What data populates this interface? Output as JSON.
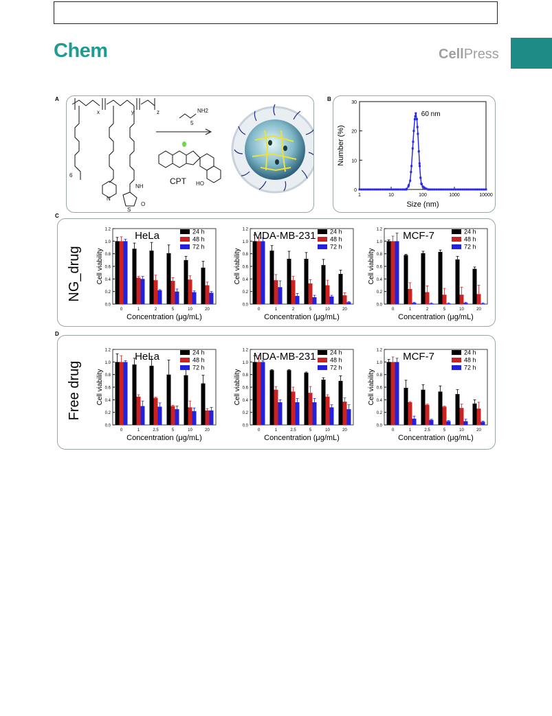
{
  "header": {
    "journal": "Chem",
    "publisher_part1": "Cell",
    "publisher_part2": "Press",
    "accent_color": "#1f9c91",
    "tab_color": "#1f8b86"
  },
  "figure": {
    "panel_labels": [
      "A",
      "B",
      "C",
      "D"
    ],
    "panel_a": {
      "reagent": "NH2",
      "reagent_subscript": "5",
      "subscripts": [
        "x",
        "y",
        "z"
      ],
      "oligo_count": "6",
      "drug_label": "CPT",
      "hydroxyl_label": "HO",
      "amide_label": "NH",
      "sulfur_label": "S",
      "ring_atom_n": "N",
      "ring_atom_o": "O"
    },
    "row_labels": {
      "c": "NG_drug",
      "d": "Free drug"
    }
  },
  "chart_data": [
    {
      "id": "B",
      "type": "line",
      "xscale": "log",
      "xlabel": "Size (nm)",
      "ylabel": "Number (%)",
      "xlim": [
        1,
        10000
      ],
      "ylim": [
        0,
        30
      ],
      "x_tick_labels": [
        "1",
        "10",
        "100",
        "1000",
        "10000"
      ],
      "y_tick_labels": [
        "0",
        "10",
        "20",
        "30"
      ],
      "annotation": "60 nm",
      "color": "#2a2ae6",
      "x": [
        1,
        30,
        35,
        40,
        44,
        48,
        52,
        56,
        60,
        65,
        70,
        75,
        80,
        85,
        90,
        100,
        115,
        130,
        150,
        10000
      ],
      "y": [
        0,
        0,
        1,
        3,
        8,
        14,
        20,
        24,
        26,
        24,
        19,
        13,
        8,
        4,
        2,
        1,
        0.5,
        0.2,
        0,
        0
      ]
    },
    {
      "id": "C-HeLa",
      "type": "bar",
      "title": "HeLa",
      "categories": [
        "0",
        "1",
        "2",
        "5",
        "10",
        "20"
      ],
      "xlabel": "Concentration (μg/mL)",
      "ylabel": "Cell viability",
      "ylim": [
        0,
        1.2
      ],
      "y_tick_labels": [
        "0.0",
        "0.2",
        "0.4",
        "0.6",
        "0.8",
        "1.0",
        "1.2"
      ],
      "series": [
        {
          "name": "24 h",
          "color": "#000000",
          "values": [
            1.0,
            0.88,
            0.85,
            0.81,
            0.7,
            0.58
          ],
          "errors": [
            0.06,
            0.09,
            0.13,
            0.13,
            0.06,
            0.1
          ]
        },
        {
          "name": "48 h",
          "color": "#cc2222",
          "values": [
            1.0,
            0.42,
            0.38,
            0.37,
            0.39,
            0.3
          ],
          "errors": [
            0.07,
            0.02,
            0.08,
            0.05,
            0.06,
            0.05
          ]
        },
        {
          "name": "72 h",
          "color": "#2222dd",
          "values": [
            1.0,
            0.4,
            0.22,
            0.2,
            0.19,
            0.18
          ],
          "errors": [
            0.03,
            0.04,
            0.01,
            0.04,
            0.02,
            0.02
          ]
        }
      ]
    },
    {
      "id": "C-MDA-MB-231",
      "type": "bar",
      "title": "MDA-MB-231",
      "categories": [
        "0",
        "1",
        "2",
        "5",
        "10",
        "20"
      ],
      "xlabel": "Concentration (μg/mL)",
      "ylabel": "Cell viability",
      "ylim": [
        0,
        1.2
      ],
      "y_tick_labels": [
        "0.0",
        "0.2",
        "0.4",
        "0.6",
        "0.8",
        "1.0",
        "1.2"
      ],
      "series": [
        {
          "name": "24 h",
          "color": "#000000",
          "values": [
            1.0,
            0.85,
            0.72,
            0.72,
            0.62,
            0.48
          ],
          "errors": [
            0.1,
            0.08,
            0.12,
            0.1,
            0.09,
            0.06
          ]
        },
        {
          "name": "48 h",
          "color": "#cc2222",
          "values": [
            1.0,
            0.38,
            0.38,
            0.33,
            0.3,
            0.14
          ],
          "errors": [
            0.05,
            0.09,
            0.06,
            0.06,
            0.08,
            0.04
          ]
        },
        {
          "name": "72 h",
          "color": "#2222dd",
          "values": [
            1.0,
            0.27,
            0.13,
            0.11,
            0.12,
            0.03
          ],
          "errors": [
            0.05,
            0.1,
            0.04,
            0.03,
            0.02,
            0.01
          ]
        }
      ]
    },
    {
      "id": "C-MCF-7",
      "type": "bar",
      "title": "MCF-7",
      "categories": [
        "0",
        "1",
        "2",
        "5",
        "10",
        "20"
      ],
      "xlabel": "Concentration (μg/mL)",
      "ylabel": "Cell viability",
      "ylim": [
        0,
        1.2
      ],
      "y_tick_labels": [
        "0.0",
        "0.2",
        "0.4",
        "0.6",
        "0.8",
        "1.0",
        "1.2"
      ],
      "series": [
        {
          "name": "24 h",
          "color": "#000000",
          "values": [
            1.0,
            0.78,
            0.81,
            0.83,
            0.71,
            0.56
          ],
          "errors": [
            0.02,
            0.01,
            0.03,
            0.03,
            0.05,
            0.03
          ]
        },
        {
          "name": "48 h",
          "color": "#cc2222",
          "values": [
            1.0,
            0.24,
            0.19,
            0.15,
            0.15,
            0.16
          ],
          "errors": [
            0.08,
            0.1,
            0.1,
            0.1,
            0.12,
            0.14
          ]
        },
        {
          "name": "72 h",
          "color": "#2222dd",
          "values": [
            1.0,
            0.02,
            0.01,
            0.01,
            0.02,
            0.01
          ],
          "errors": [
            0.13,
            0.01,
            0.01,
            0.01,
            0.01,
            0.01
          ]
        }
      ]
    },
    {
      "id": "D-HeLa",
      "type": "bar",
      "title": "HeLa",
      "categories": [
        "0",
        "1",
        "2.5",
        "5",
        "10",
        "20"
      ],
      "xlabel": "Concentration (μg/mL)",
      "ylabel": "Cell viability",
      "ylim": [
        0,
        1.2
      ],
      "y_tick_labels": [
        "0.0",
        "0.2",
        "0.4",
        "0.6",
        "0.8",
        "1.0",
        "1.2"
      ],
      "series": [
        {
          "name": "24 h",
          "color": "#000000",
          "values": [
            1.0,
            0.96,
            0.94,
            0.8,
            0.79,
            0.66
          ],
          "errors": [
            0.13,
            0.1,
            0.15,
            0.23,
            0.15,
            0.13
          ]
        },
        {
          "name": "48 h",
          "color": "#cc2222",
          "values": [
            1.0,
            0.45,
            0.43,
            0.3,
            0.28,
            0.23
          ],
          "errors": [
            0.1,
            0.03,
            0.01,
            0.01,
            0.1,
            0.03
          ]
        },
        {
          "name": "72 h",
          "color": "#2222dd",
          "values": [
            1.0,
            0.3,
            0.29,
            0.25,
            0.22,
            0.23
          ],
          "errors": [
            0.02,
            0.08,
            0.06,
            0.05,
            0.05,
            0.05
          ]
        }
      ]
    },
    {
      "id": "D-MDA-MB-231",
      "type": "bar",
      "title": "MDA-MB-231",
      "categories": [
        "0",
        "1",
        "2.5",
        "5",
        "10",
        "20"
      ],
      "xlabel": "Concentration (μg/mL)",
      "ylabel": "Cell viability",
      "ylim": [
        0,
        1.2
      ],
      "y_tick_labels": [
        "0.0",
        "0.2",
        "0.4",
        "0.6",
        "0.8",
        "1.0",
        "1.2"
      ],
      "series": [
        {
          "name": "24 h",
          "color": "#000000",
          "values": [
            1.0,
            0.87,
            0.87,
            0.83,
            0.72,
            0.7
          ],
          "errors": [
            0.1,
            0.01,
            0.01,
            0.01,
            0.03,
            0.08
          ]
        },
        {
          "name": "48 h",
          "color": "#cc2222",
          "values": [
            1.0,
            0.56,
            0.53,
            0.51,
            0.45,
            0.37
          ],
          "errors": [
            0.1,
            0.05,
            0.07,
            0.1,
            0.03,
            0.06
          ]
        },
        {
          "name": "72 h",
          "color": "#2222dd",
          "values": [
            1.0,
            0.36,
            0.36,
            0.36,
            0.28,
            0.25
          ],
          "errors": [
            0.02,
            0.04,
            0.06,
            0.06,
            0.04,
            0.07
          ]
        }
      ]
    },
    {
      "id": "D-MCF-7",
      "type": "bar",
      "title": "MCF-7",
      "categories": [
        "0",
        "1",
        "2.5",
        "5",
        "10",
        "20"
      ],
      "xlabel": "Concentration (μg/mL)",
      "ylabel": "Cell viability",
      "ylim": [
        0,
        1.2
      ],
      "y_tick_labels": [
        "0.0",
        "0.2",
        "0.4",
        "0.6",
        "0.8",
        "1.0",
        "1.2"
      ],
      "series": [
        {
          "name": "24 h",
          "color": "#000000",
          "values": [
            1.0,
            0.59,
            0.56,
            0.53,
            0.49,
            0.34
          ],
          "errors": [
            0.04,
            0.12,
            0.08,
            0.09,
            0.07,
            0.06
          ]
        },
        {
          "name": "48 h",
          "color": "#cc2222",
          "values": [
            1.0,
            0.36,
            0.32,
            0.29,
            0.27,
            0.26
          ],
          "errors": [
            0.08,
            0.01,
            0.01,
            0.01,
            0.06,
            0.1
          ]
        },
        {
          "name": "72 h",
          "color": "#2222dd",
          "values": [
            1.0,
            0.1,
            0.08,
            0.06,
            0.06,
            0.05
          ],
          "errors": [
            0.06,
            0.04,
            0.01,
            0.01,
            0.03,
            0.01
          ]
        }
      ]
    }
  ]
}
